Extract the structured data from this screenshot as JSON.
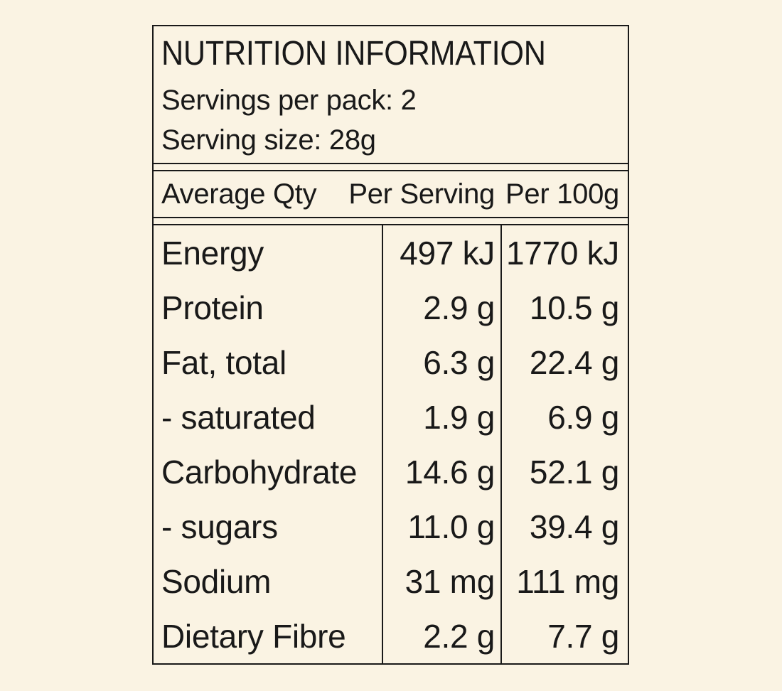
{
  "colors": {
    "background": "#faf3e3",
    "ink": "#191919"
  },
  "label": {
    "title": "NUTRITION INFORMATION",
    "servings_per_pack": "Servings per pack: 2",
    "serving_size": "Serving size: 28g",
    "columns": {
      "nutrient": "Average Qty",
      "per_serving": "Per Serving",
      "per_100g": "Per 100g"
    },
    "rows": [
      {
        "nutrient": "Energy",
        "per_serving": "497 kJ",
        "per_100g": "1770 kJ"
      },
      {
        "nutrient": "Protein",
        "per_serving": "2.9 g",
        "per_100g": "10.5 g"
      },
      {
        "nutrient": "Fat, total",
        "per_serving": "6.3 g",
        "per_100g": "22.4 g"
      },
      {
        "nutrient": "- saturated",
        "per_serving": "1.9 g",
        "per_100g": "6.9 g"
      },
      {
        "nutrient": "Carbohydrate",
        "per_serving": "14.6 g",
        "per_100g": "52.1 g"
      },
      {
        "nutrient": "- sugars",
        "per_serving": "11.0 g",
        "per_100g": "39.4 g"
      },
      {
        "nutrient": "Sodium",
        "per_serving": "31 mg",
        "per_100g": "111 mg"
      },
      {
        "nutrient": "Dietary Fibre",
        "per_serving": "2.2 g",
        "per_100g": "7.7 g"
      }
    ]
  }
}
